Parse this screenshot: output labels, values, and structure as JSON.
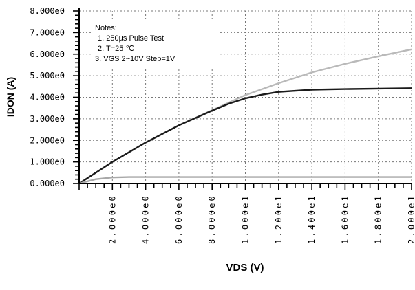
{
  "chart_data": {
    "type": "line",
    "xlabel": "VDS (V)",
    "ylabel": "IDON (A)",
    "xlim": [
      0,
      20
    ],
    "ylim": [
      0,
      8
    ],
    "grid": true,
    "x_tick_labels": [
      "2.000e0",
      "4.000e0",
      "6.000e0",
      "8.000e0",
      "1.000e1",
      "1.200e1",
      "1.400e1",
      "1.600e1",
      "1.800e1",
      "2.000e1"
    ],
    "y_tick_labels": [
      "0.000e0",
      "1.000e0",
      "2.000e0",
      "3.000e0",
      "4.000e0",
      "5.000e0",
      "6.000e0",
      "7.000e0",
      "8.000e0"
    ],
    "notes": [
      "Notes:",
      "1. 250µs  Pulse Test",
      "2. T=25 ℃",
      "3. VGS  2~10V  Step=1V"
    ],
    "series": [
      {
        "color": "#b9b9b9",
        "x": [
          0,
          2,
          4,
          6,
          8,
          10,
          12,
          14,
          16,
          18,
          20
        ],
        "y": [
          0,
          1.0,
          1.9,
          2.7,
          3.4,
          4.1,
          4.65,
          5.15,
          5.55,
          5.9,
          6.22
        ]
      },
      {
        "color": "#1a1a1a",
        "x": [
          0,
          2,
          4,
          6,
          8,
          9,
          10,
          11,
          12,
          14,
          16,
          18,
          20
        ],
        "y": [
          0,
          1.0,
          1.9,
          2.7,
          3.38,
          3.7,
          3.95,
          4.12,
          4.25,
          4.35,
          4.38,
          4.4,
          4.42
        ]
      },
      {
        "color": "#a8a8a8",
        "x": [
          0,
          1,
          2,
          3,
          4,
          20
        ],
        "y": [
          0,
          0.2,
          0.28,
          0.3,
          0.3,
          0.3
        ]
      }
    ]
  }
}
